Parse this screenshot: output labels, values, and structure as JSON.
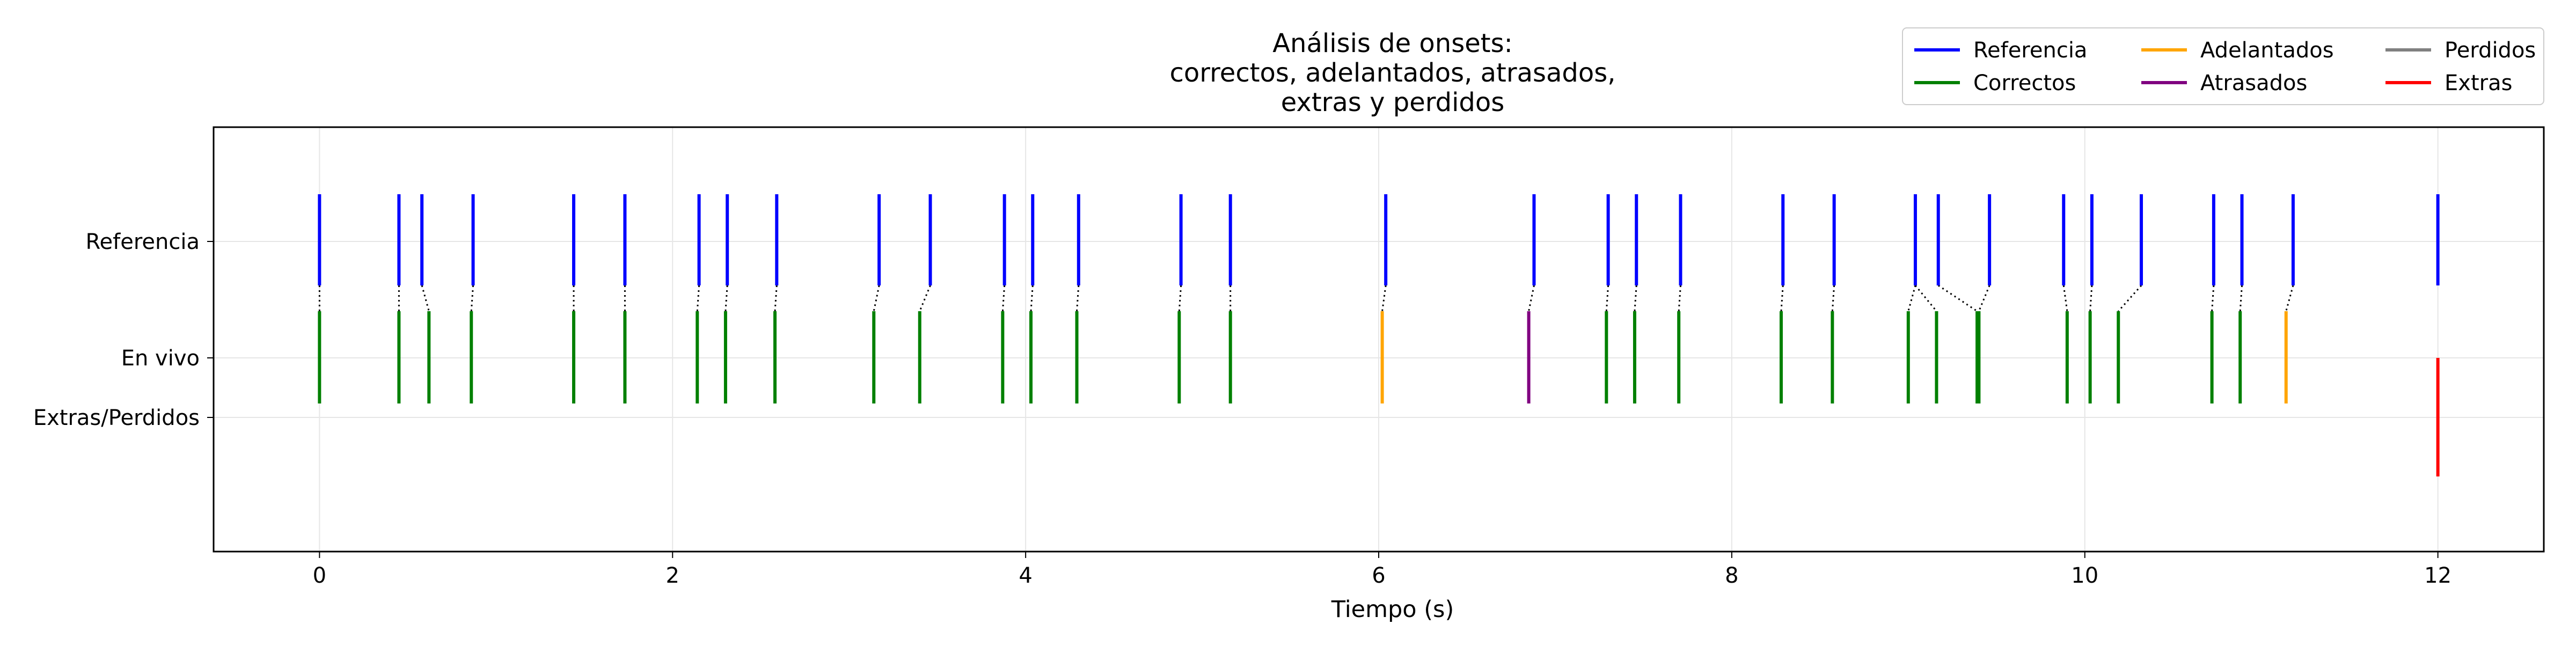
{
  "chart_data": {
    "type": "event-plot",
    "title_lines": [
      "Análisis de onsets:",
      "correctos, adelantados, atrasados,",
      "extras y perdidos"
    ],
    "xlabel": "Tiempo (s)",
    "ylabel": "",
    "xlim": [
      -0.6,
      12.6
    ],
    "x_ticks": [
      0,
      2,
      4,
      6,
      8,
      10,
      12
    ],
    "grid": true,
    "row_labels": [
      "Referencia",
      "En vivo",
      "Extras/Perdidos"
    ],
    "legend": {
      "placement": "top-right",
      "columns": 3,
      "items": [
        {
          "label": "Referencia",
          "color": "#0000ff"
        },
        {
          "label": "Correctos",
          "color": "#008000"
        },
        {
          "label": "Adelantados",
          "color": "#ffa500"
        },
        {
          "label": "Atrasados",
          "color": "#800080"
        },
        {
          "label": "Perdidos",
          "color": "#808080"
        },
        {
          "label": "Extras",
          "color": "#ff0000"
        }
      ]
    },
    "colors": {
      "reference": "#0000ff",
      "correct": "#008000",
      "early": "#ffa500",
      "late": "#800080",
      "missed": "#808080",
      "extra": "#ff0000",
      "match_line": "#000000"
    },
    "reference_onsets": [
      0.0,
      0.45,
      0.58,
      0.87,
      1.44,
      1.73,
      2.15,
      2.31,
      2.59,
      3.17,
      3.46,
      3.88,
      4.04,
      4.3,
      4.88,
      5.16,
      6.04,
      6.88,
      7.3,
      7.46,
      7.71,
      8.29,
      8.58,
      9.04,
      9.17,
      9.46,
      9.88,
      10.04,
      10.32,
      10.73,
      10.89,
      11.18,
      12.0
    ],
    "live_onsets": [
      {
        "t": 0.0,
        "ref": 0.0,
        "status": "correct"
      },
      {
        "t": 0.45,
        "ref": 0.45,
        "status": "correct"
      },
      {
        "t": 0.62,
        "ref": 0.58,
        "status": "correct"
      },
      {
        "t": 0.86,
        "ref": 0.87,
        "status": "correct"
      },
      {
        "t": 1.44,
        "ref": 1.44,
        "status": "correct"
      },
      {
        "t": 1.73,
        "ref": 1.73,
        "status": "correct"
      },
      {
        "t": 2.14,
        "ref": 2.15,
        "status": "correct"
      },
      {
        "t": 2.3,
        "ref": 2.31,
        "status": "correct"
      },
      {
        "t": 2.58,
        "ref": 2.59,
        "status": "correct"
      },
      {
        "t": 3.14,
        "ref": 3.17,
        "status": "correct"
      },
      {
        "t": 3.4,
        "ref": 3.46,
        "status": "correct"
      },
      {
        "t": 3.87,
        "ref": 3.88,
        "status": "correct"
      },
      {
        "t": 4.03,
        "ref": 4.04,
        "status": "correct"
      },
      {
        "t": 4.29,
        "ref": 4.3,
        "status": "correct"
      },
      {
        "t": 4.87,
        "ref": 4.88,
        "status": "correct"
      },
      {
        "t": 5.16,
        "ref": 5.16,
        "status": "correct"
      },
      {
        "t": 6.02,
        "ref": 6.04,
        "status": "early"
      },
      {
        "t": 6.85,
        "ref": 6.88,
        "status": "late"
      },
      {
        "t": 7.29,
        "ref": 7.3,
        "status": "correct"
      },
      {
        "t": 7.45,
        "ref": 7.46,
        "status": "correct"
      },
      {
        "t": 7.7,
        "ref": 7.71,
        "status": "correct"
      },
      {
        "t": 8.28,
        "ref": 8.29,
        "status": "correct"
      },
      {
        "t": 8.57,
        "ref": 8.58,
        "status": "correct"
      },
      {
        "t": 9.0,
        "ref": 9.04,
        "status": "correct"
      },
      {
        "t": 9.16,
        "ref": 9.04,
        "status": "correct"
      },
      {
        "t": 9.39,
        "ref": 9.17,
        "status": "correct"
      },
      {
        "t": 9.4,
        "ref": 9.46,
        "status": "correct"
      },
      {
        "t": 9.9,
        "ref": 9.88,
        "status": "correct"
      },
      {
        "t": 10.03,
        "ref": 10.04,
        "status": "correct"
      },
      {
        "t": 10.19,
        "ref": 10.32,
        "status": "correct"
      },
      {
        "t": 10.72,
        "ref": 10.73,
        "status": "correct"
      },
      {
        "t": 10.88,
        "ref": 10.89,
        "status": "correct"
      },
      {
        "t": 11.14,
        "ref": 11.18,
        "status": "early"
      }
    ],
    "extra_onsets": [
      12.0
    ],
    "missed_onsets": []
  }
}
